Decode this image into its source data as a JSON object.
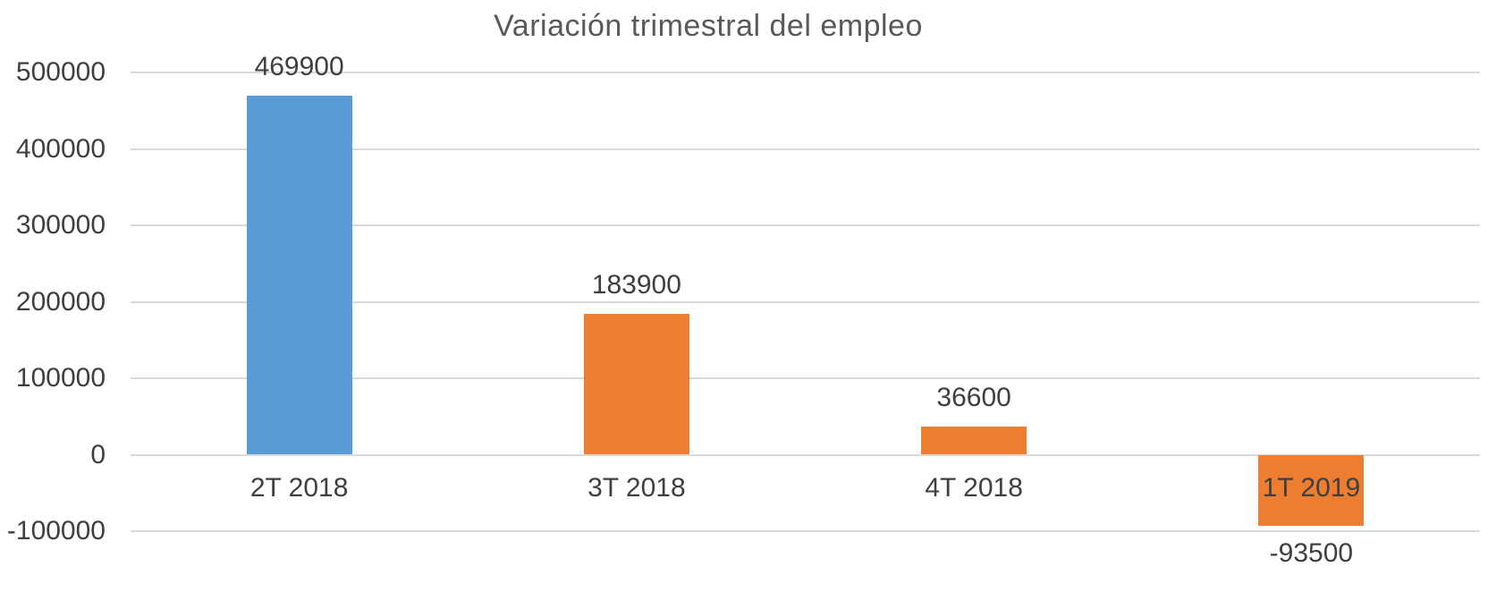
{
  "chart_data": {
    "type": "bar",
    "title": "Variación trimestral del empleo",
    "categories": [
      "2T 2018",
      "3T 2018",
      "4T 2018",
      "1T 2019"
    ],
    "values": [
      469900,
      183900,
      36600,
      -93500
    ],
    "data_labels": [
      "469900",
      "183900",
      "36600",
      "-93500"
    ],
    "bar_colors": [
      "#5B9BD5",
      "#ED7D31",
      "#ED7D31",
      "#ED7D31"
    ],
    "xlabel": "",
    "ylabel": "",
    "ylim": [
      -100000,
      500000
    ],
    "ytick_step": 100000,
    "yticks": [
      500000,
      400000,
      300000,
      200000,
      100000,
      0,
      -100000
    ],
    "ytick_labels": [
      "500000",
      "400000",
      "300000",
      "200000",
      "100000",
      "0",
      "-100000"
    ],
    "grid": "horizontal-only",
    "legend": "none",
    "colors": {
      "background": "#FFFFFF",
      "gridline": "#D9D9D9",
      "title_text": "#595959",
      "label_text": "#3F3F3F",
      "series_blue": "#5B9BD5",
      "series_orange": "#ED7D31"
    }
  }
}
